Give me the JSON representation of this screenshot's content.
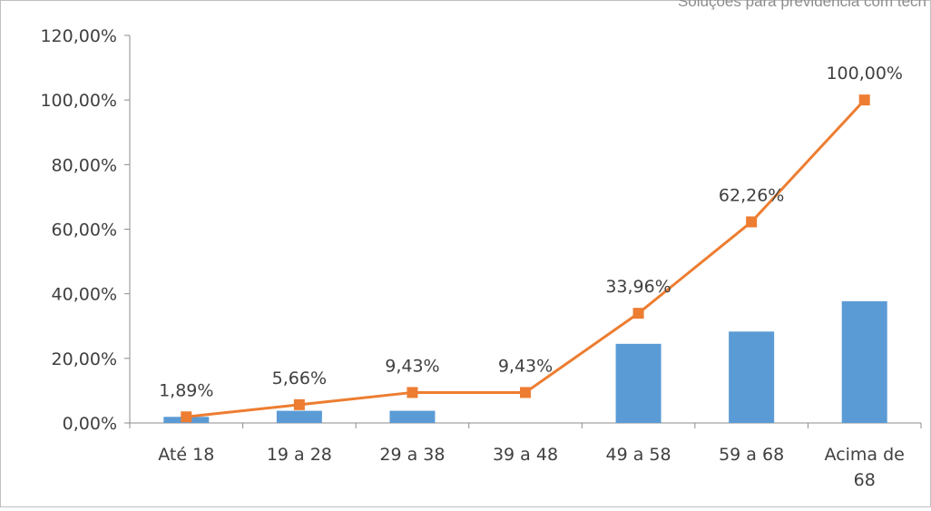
{
  "header": {
    "corner_text": "Soluções para previdência com tecn"
  },
  "chart_data": {
    "type": "bar",
    "categories": [
      "Até 18",
      "19 a 28",
      "29 a 38",
      "39 a 48",
      "49 a 58",
      "59 a 68",
      "Acima de 68"
    ],
    "category_lines": [
      [
        "Até 18"
      ],
      [
        "19 a 28"
      ],
      [
        "29 a 38"
      ],
      [
        "39 a 48"
      ],
      [
        "49 a 58"
      ],
      [
        "59 a 68"
      ],
      [
        "Acima de",
        "68"
      ]
    ],
    "series": [
      {
        "type": "bar",
        "values": [
          1.89,
          3.77,
          3.77,
          0,
          24.5,
          28.3,
          37.7
        ],
        "color": "#5b9bd5"
      },
      {
        "type": "line",
        "values": [
          1.89,
          5.66,
          9.43,
          9.43,
          33.96,
          62.26,
          100.0
        ],
        "labels": [
          "1,89%",
          "5,66%",
          "9,43%",
          "9,43%",
          "33,96%",
          "62,26%",
          "100,00%"
        ],
        "color": "#ed7d31",
        "marker": "square"
      }
    ],
    "ylim": [
      0,
      120
    ],
    "yticks": [
      0,
      20,
      40,
      60,
      80,
      100,
      120
    ],
    "ytick_labels": [
      "0,00%",
      "20,00%",
      "40,00%",
      "60,00%",
      "80,00%",
      "100,00%",
      "120,00%"
    ],
    "grid": false,
    "legend": "none"
  }
}
